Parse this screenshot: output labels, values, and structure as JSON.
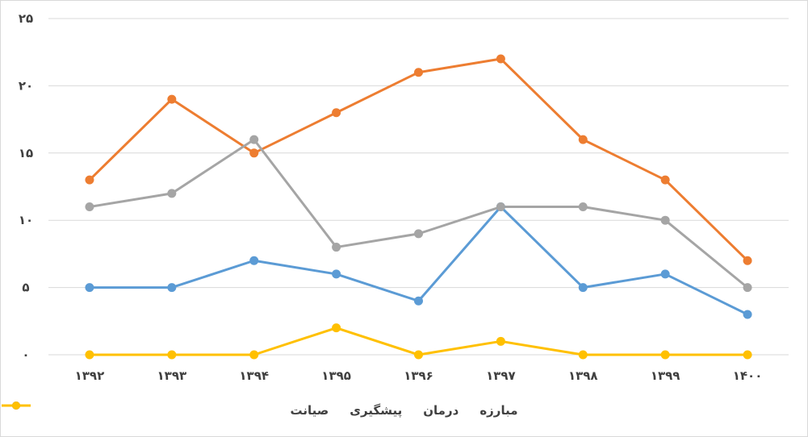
{
  "chart_data": {
    "type": "line",
    "categories": [
      "۱۳۹۲",
      "۱۳۹۳",
      "۱۳۹۴",
      "۱۳۹۵",
      "۱۳۹۶",
      "۱۳۹۷",
      "۱۳۹۸",
      "۱۳۹۹",
      "۱۴۰۰"
    ],
    "y_ticks": [
      "۰",
      "۵",
      "۱۰",
      "۱۵",
      "۲۰",
      "۲۵"
    ],
    "ylim": [
      0,
      25
    ],
    "grid": true,
    "legend_position": "bottom",
    "series": [
      {
        "name": "مبارزه",
        "color": "#5b9bd5",
        "values": [
          5,
          5,
          7,
          6,
          4,
          11,
          5,
          6,
          3
        ]
      },
      {
        "name": "درمان",
        "color": "#ed7d31",
        "values": [
          13,
          19,
          15,
          18,
          21,
          22,
          16,
          13,
          7
        ]
      },
      {
        "name": "پیشگیری",
        "color": "#a5a5a5",
        "values": [
          11,
          12,
          16,
          8,
          9,
          11,
          11,
          10,
          5
        ]
      },
      {
        "name": "صیانت",
        "color": "#ffc000",
        "values": [
          0,
          0,
          0,
          2,
          0,
          1,
          0,
          0,
          0
        ]
      }
    ]
  }
}
